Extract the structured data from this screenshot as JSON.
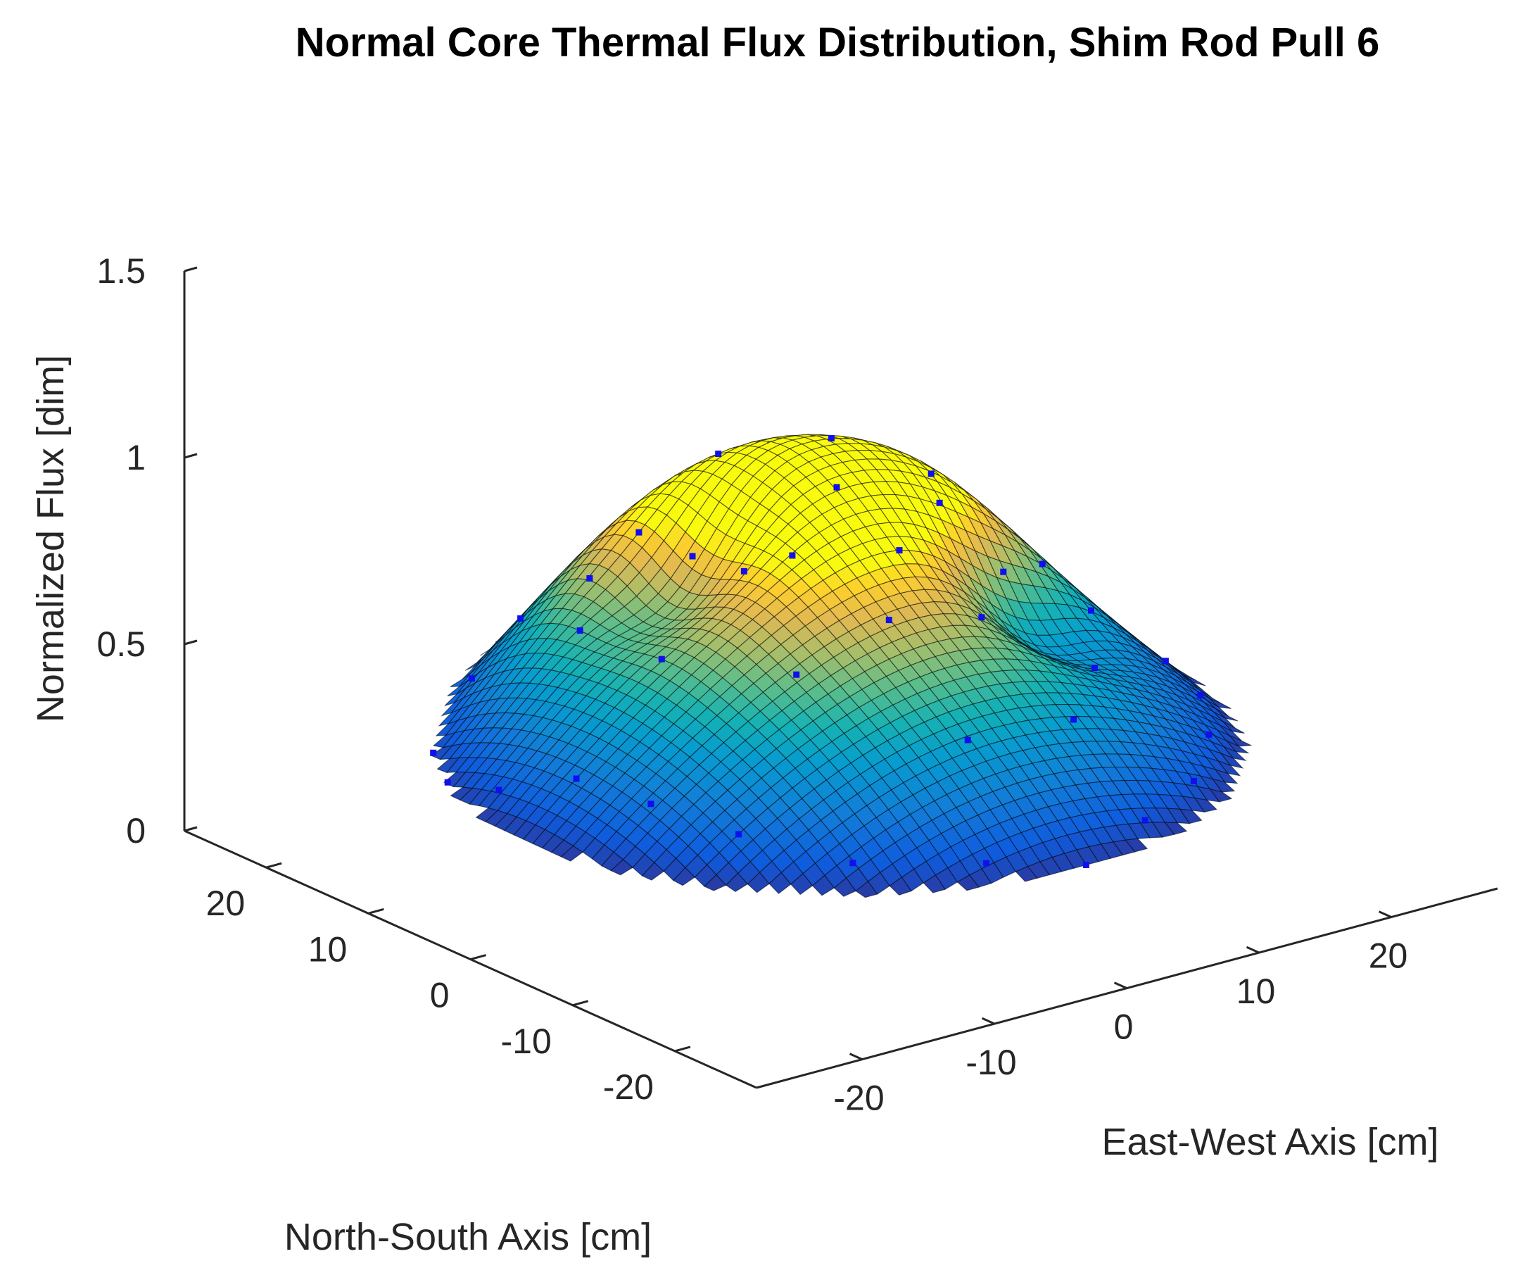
{
  "chart_data": {
    "type": "surface3d",
    "title": "Normal Core Thermal Flux Distribution, Shim Rod Pull 6",
    "xlabel": "East-West Axis [cm]",
    "ylabel": "North-South Axis [cm]",
    "zlabel": "Normalized Flux [dim]",
    "xlim": [
      -28,
      28
    ],
    "ylim": [
      -28,
      28
    ],
    "zlim": [
      0,
      1.5
    ],
    "x_ticks": [
      -20,
      -10,
      0,
      10,
      20
    ],
    "y_ticks": [
      -20,
      -10,
      0,
      10,
      20
    ],
    "z_ticks": [
      0,
      0.5,
      1,
      1.5
    ],
    "x_tick_labels": [
      "-20",
      "-10",
      "0",
      "10",
      "20"
    ],
    "y_tick_labels": [
      "-20",
      "-10",
      "0",
      "10",
      "20"
    ],
    "z_tick_labels": [
      "0",
      "0.5",
      "1",
      "1.5"
    ],
    "grid": false,
    "colormap": "parula",
    "marker_color": "#1010ee",
    "core_radius": 24,
    "surface_model": {
      "base": 0.28,
      "dome_peak": 0.38,
      "bumps": [
        {
          "x": -2,
          "y": 13,
          "height": 0.28,
          "width": 8
        },
        {
          "x": 12,
          "y": 8,
          "height": 0.22,
          "width": 7
        },
        {
          "x": 2,
          "y": 3,
          "height": 0.12,
          "width": 9
        }
      ],
      "dips": [
        {
          "x": -7,
          "y": 7,
          "depth": 0.16,
          "width": 3.5
        },
        {
          "x": 11,
          "y": -4,
          "depth": 0.14,
          "width": 3.5
        }
      ]
    },
    "measured_points": [
      {
        "x": -22,
        "y": 10,
        "z": 0.42
      },
      {
        "x": -20,
        "y": 14,
        "z": 0.45
      },
      {
        "x": -22,
        "y": 5,
        "z": 0.4
      },
      {
        "x": -20,
        "y": 0,
        "z": 0.38
      },
      {
        "x": -19,
        "y": -6,
        "z": 0.33
      },
      {
        "x": -17,
        "y": -12,
        "z": 0.3
      },
      {
        "x": -13,
        "y": -18,
        "z": 0.28
      },
      {
        "x": -6,
        "y": -22,
        "z": 0.27
      },
      {
        "x": 0,
        "y": -24,
        "z": 0.27
      },
      {
        "x": 6,
        "y": -22,
        "z": 0.27
      },
      {
        "x": 12,
        "y": -19,
        "z": 0.28
      },
      {
        "x": 17,
        "y": -14,
        "z": 0.3
      },
      {
        "x": 21,
        "y": -8,
        "z": 0.32
      },
      {
        "x": 23,
        "y": -2,
        "z": 0.35
      },
      {
        "x": 22,
        "y": 4,
        "z": 0.36
      },
      {
        "x": 20,
        "y": 10,
        "z": 0.4
      },
      {
        "x": -14,
        "y": 18,
        "z": 0.52
      },
      {
        "x": -8,
        "y": 21,
        "z": 0.6
      },
      {
        "x": -2,
        "y": 22,
        "z": 0.68
      },
      {
        "x": 5,
        "y": 21,
        "z": 0.66
      },
      {
        "x": 11,
        "y": 19,
        "z": 0.62
      },
      {
        "x": 16,
        "y": 15,
        "z": 0.55
      },
      {
        "x": -12,
        "y": 10,
        "z": 0.55
      },
      {
        "x": -6,
        "y": 12,
        "z": 0.62
      },
      {
        "x": 0,
        "y": 12,
        "z": 0.66
      },
      {
        "x": 7,
        "y": 10,
        "z": 0.64
      },
      {
        "x": 13,
        "y": 8,
        "z": 0.58
      },
      {
        "x": -12,
        "y": 2,
        "z": 0.5
      },
      {
        "x": -5,
        "y": 3,
        "z": 0.56
      },
      {
        "x": 2,
        "y": 3,
        "z": 0.6
      },
      {
        "x": 9,
        "y": 2,
        "z": 0.55
      },
      {
        "x": 16,
        "y": 1,
        "z": 0.48
      },
      {
        "x": -8,
        "y": -6,
        "z": 0.45
      },
      {
        "x": -1,
        "y": -6,
        "z": 0.46
      },
      {
        "x": 6,
        "y": -6,
        "z": 0.44
      },
      {
        "x": 13,
        "y": -8,
        "z": 0.4
      },
      {
        "x": -2,
        "y": -15,
        "z": 0.36
      },
      {
        "x": 6,
        "y": -15,
        "z": 0.34
      }
    ]
  }
}
